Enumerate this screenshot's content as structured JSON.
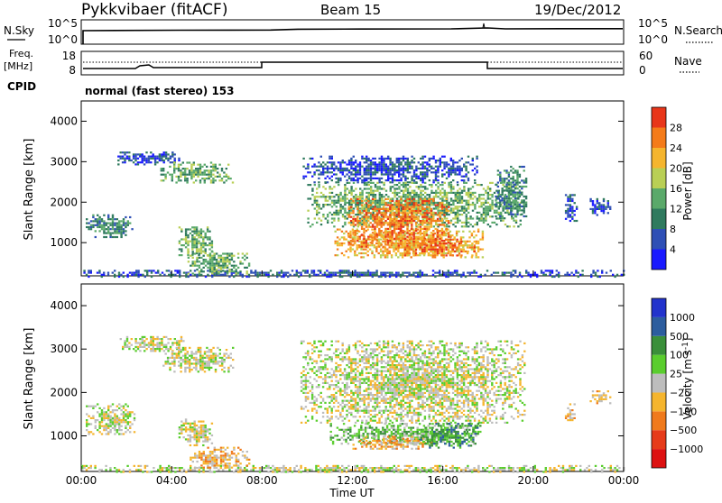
{
  "header": {
    "station": "Pykkvibaer (fitACF)",
    "beam": "Beam 15",
    "date": "19/Dec/2012"
  },
  "noise_panel": {
    "left_label": "N.Sky",
    "right_label": "N.Search",
    "left_ticks": [
      "10^5",
      "10^0"
    ],
    "right_ticks": [
      "10^5",
      "10^0"
    ]
  },
  "freq_panel": {
    "left_label_top": "Freq.",
    "left_label_unit": "[MHz]",
    "right_label": "Nave",
    "left_ticks": [
      "18",
      "8"
    ],
    "right_ticks": [
      "60",
      "0"
    ]
  },
  "cpid": {
    "label": "CPID",
    "mode_text": "normal (fast stereo) 153"
  },
  "time_axis": {
    "label": "Time UT",
    "ticks": [
      "00:00",
      "04:00",
      "08:00",
      "12:00",
      "16:00",
      "20:00",
      "00:00"
    ]
  },
  "chart_data": [
    {
      "type": "heatmap",
      "title": "",
      "quantity": "Power",
      "xlabel": "Time UT",
      "ylabel": "Slant Range [km]",
      "xlim": [
        0,
        24
      ],
      "ylim": [
        180,
        4500
      ],
      "y_ticks": [
        "1000",
        "2000",
        "3000",
        "4000"
      ],
      "y_tick_values": [
        1000,
        2000,
        3000,
        4000
      ],
      "colorbar": {
        "label": "Power [dB]",
        "ticks": [
          "4",
          "8",
          "12",
          "16",
          "20",
          "24",
          "28"
        ],
        "tick_values": [
          4,
          8,
          12,
          16,
          20,
          24,
          28
        ],
        "colors": [
          "#1a1aff",
          "#2e4fb5",
          "#2f7a5e",
          "#5aa96a",
          "#b9cf55",
          "#f5b52e",
          "#f47b1a",
          "#e8361a"
        ]
      },
      "regions": [
        {
          "t0": 0.0,
          "t1": 24.0,
          "r0": 180,
          "r1": 330,
          "level": 1
        },
        {
          "t0": 0.2,
          "t1": 2.3,
          "r0": 1150,
          "r1": 1700,
          "level": 2
        },
        {
          "t0": 1.6,
          "t1": 4.4,
          "r0": 2950,
          "r1": 3250,
          "level": 1
        },
        {
          "t0": 3.5,
          "t1": 6.7,
          "r0": 2500,
          "r1": 3000,
          "level": 3
        },
        {
          "t0": 4.3,
          "t1": 5.8,
          "r0": 700,
          "r1": 1400,
          "level": 3
        },
        {
          "t0": 4.7,
          "t1": 7.4,
          "r0": 250,
          "r1": 800,
          "level": 3
        },
        {
          "t0": 9.8,
          "t1": 17.5,
          "r0": 2500,
          "r1": 3150,
          "level": 1
        },
        {
          "t0": 10.0,
          "t1": 19.4,
          "r0": 1400,
          "r1": 2500,
          "level": 3
        },
        {
          "t0": 11.2,
          "t1": 17.8,
          "r0": 650,
          "r1": 1350,
          "level": 5
        },
        {
          "t0": 11.8,
          "t1": 16.4,
          "r0": 900,
          "r1": 2100,
          "level": 6
        },
        {
          "t0": 14.0,
          "t1": 17.4,
          "r0": 700,
          "r1": 1100,
          "level": 6
        },
        {
          "t0": 18.3,
          "t1": 19.7,
          "r0": 1600,
          "r1": 2900,
          "level": 2
        },
        {
          "t0": 21.4,
          "t1": 21.9,
          "r0": 1550,
          "r1": 2200,
          "level": 1
        },
        {
          "t0": 22.5,
          "t1": 23.4,
          "r0": 1700,
          "r1": 2100,
          "level": 1
        }
      ]
    },
    {
      "type": "heatmap",
      "title": "",
      "quantity": "Velocity",
      "xlabel": "Time UT",
      "ylabel": "Slant Range [km]",
      "xlim": [
        0,
        24
      ],
      "ylim": [
        180,
        4500
      ],
      "y_ticks": [
        "1000",
        "2000",
        "3000",
        "4000"
      ],
      "y_tick_values": [
        1000,
        2000,
        3000,
        4000
      ],
      "colorbar": {
        "label": "Velocity [m s^-1]",
        "ticks": [
          "1000",
          "500",
          "100",
          "25",
          "−25",
          "−100",
          "−500",
          "−1000"
        ],
        "tick_values": [
          1000,
          500,
          100,
          25,
          -25,
          -100,
          -500,
          -1000
        ],
        "colors": [
          "#2233cc",
          "#2c5d9e",
          "#3a8f3a",
          "#5acd2e",
          "#bdbdbd",
          "#f5b52e",
          "#f07a1c",
          "#e63b1a",
          "#dd1111"
        ]
      },
      "regions": [
        {
          "t0": 0.0,
          "t1": 24.0,
          "r0": 180,
          "r1": 330,
          "level": 4
        },
        {
          "t0": 0.2,
          "t1": 2.4,
          "r0": 1050,
          "r1": 1750,
          "level": 4
        },
        {
          "t0": 1.7,
          "t1": 4.5,
          "r0": 2950,
          "r1": 3300,
          "level": 4
        },
        {
          "t0": 3.6,
          "t1": 6.7,
          "r0": 2500,
          "r1": 3050,
          "level": 4
        },
        {
          "t0": 4.3,
          "t1": 5.8,
          "r0": 800,
          "r1": 1400,
          "level": 4
        },
        {
          "t0": 4.8,
          "t1": 7.4,
          "r0": 250,
          "r1": 750,
          "level": 5
        },
        {
          "t0": 9.7,
          "t1": 19.6,
          "r0": 1300,
          "r1": 3200,
          "level": 4
        },
        {
          "t0": 11.0,
          "t1": 17.7,
          "r0": 800,
          "r1": 1300,
          "level": 3
        },
        {
          "t0": 12.0,
          "t1": 15.5,
          "r0": 700,
          "r1": 1000,
          "level": 5
        },
        {
          "t0": 15.0,
          "t1": 17.5,
          "r0": 750,
          "r1": 1300,
          "level": 2
        },
        {
          "t0": 21.4,
          "t1": 21.8,
          "r0": 1300,
          "r1": 1750,
          "level": 5
        },
        {
          "t0": 22.5,
          "t1": 23.4,
          "r0": 1750,
          "r1": 2050,
          "level": 5
        }
      ]
    }
  ]
}
